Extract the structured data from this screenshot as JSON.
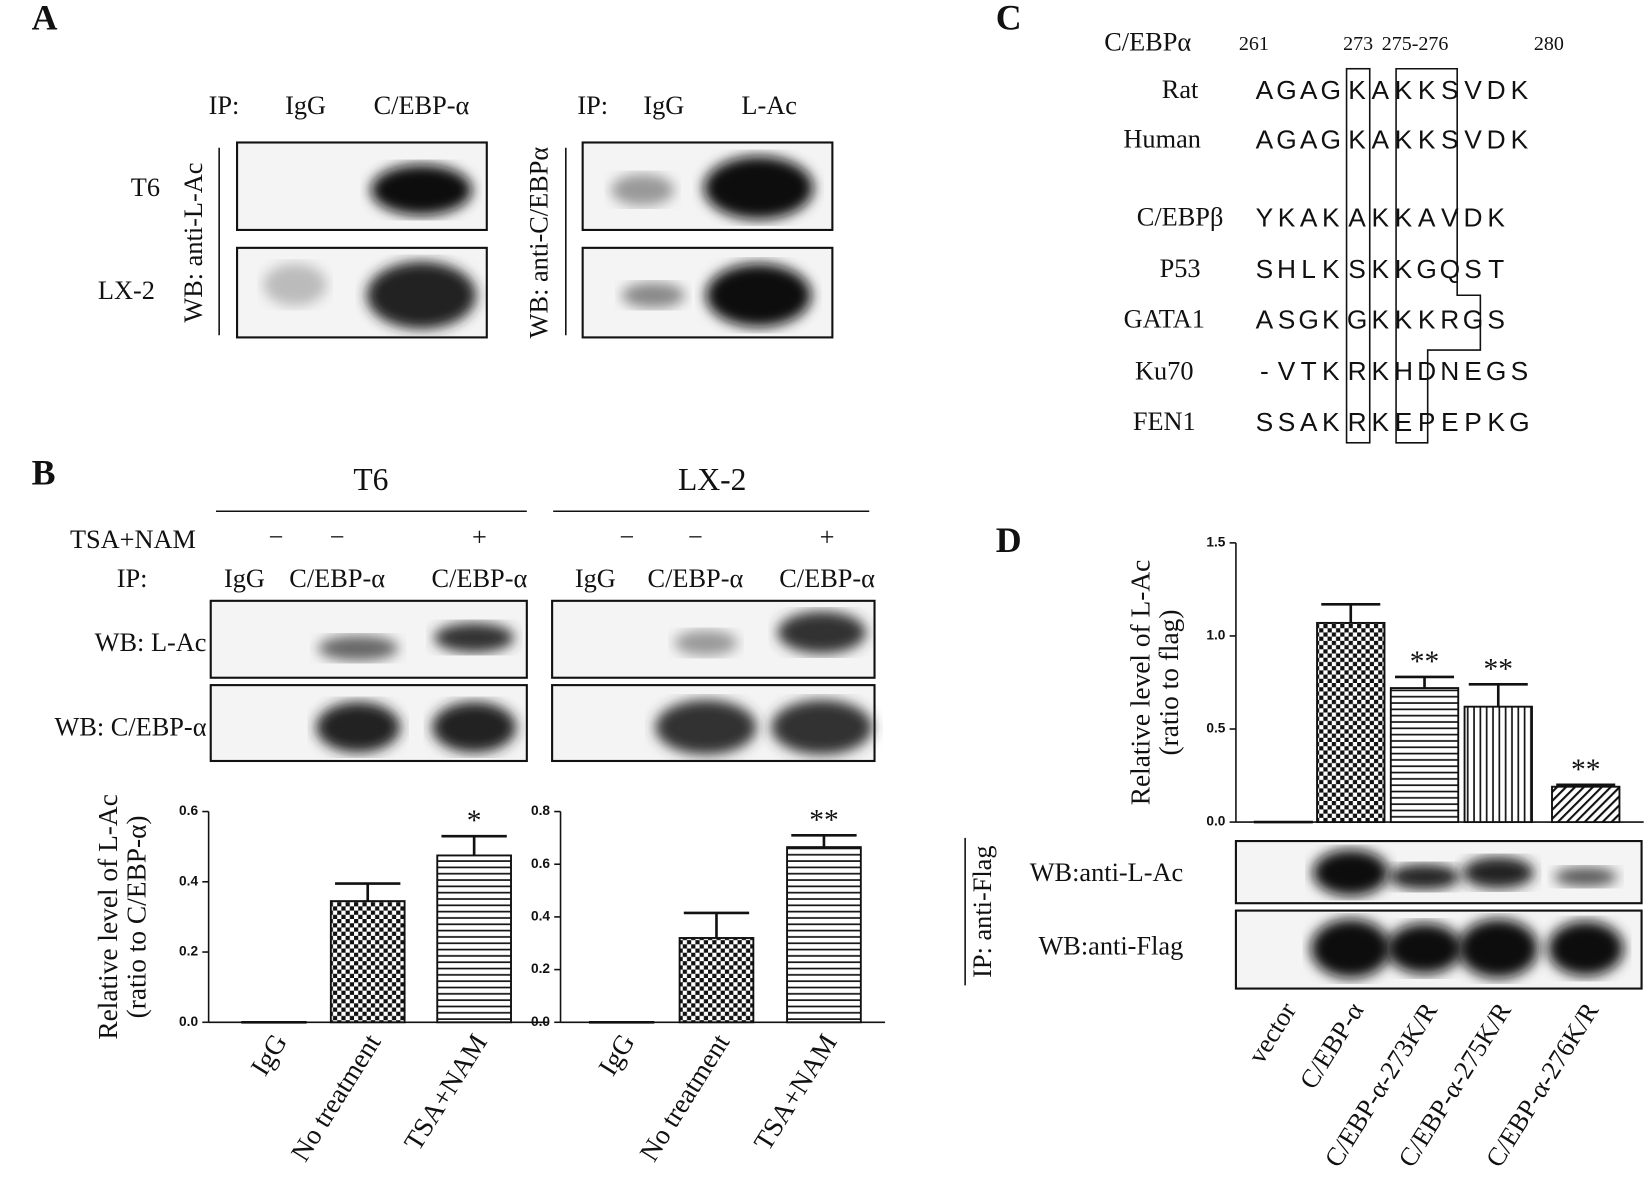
{
  "panels": {
    "A": {
      "label": "A",
      "left": {
        "ip": "IP:",
        "lanes": [
          "IgG",
          "C/EBP-α"
        ],
        "wb": "WB: anti-L-Ac"
      },
      "right": {
        "ip": "IP:",
        "lanes": [
          "IgG",
          "L-Ac"
        ],
        "wb": "WB: anti-C/EBPα"
      },
      "rows": [
        "T6",
        "LX-2"
      ]
    },
    "B": {
      "label": "B",
      "groups": [
        "T6",
        "LX-2"
      ],
      "treatment": "TSA+NAM",
      "signs": [
        "−",
        "−",
        "+",
        "−",
        "−",
        "+"
      ],
      "ip": "IP:",
      "lanes": [
        "IgG",
        "C/EBP-α",
        "C/EBP-α",
        "IgG",
        "C/EBP-α",
        "C/EBP-α"
      ],
      "wb": [
        "WB: L-Ac",
        "WB: C/EBP-α"
      ]
    },
    "C": {
      "label": "C",
      "ref": "C/EBPα",
      "positions": [
        "261",
        "273",
        "275-276",
        "280"
      ],
      "rows": [
        {
          "name": "Rat",
          "seq": [
            "A",
            "G",
            "A",
            "G",
            "K",
            "A",
            "K",
            "K",
            "S",
            "V",
            "D",
            "K"
          ]
        },
        {
          "name": "Human",
          "seq": [
            "A",
            "G",
            "A",
            "G",
            "K",
            "A",
            "K",
            "K",
            "S",
            "V",
            "D",
            "K"
          ]
        },
        {
          "name": "C/EBPβ",
          "seq": [
            "Y",
            "K",
            "A",
            "K",
            "A",
            "K",
            "K",
            "A",
            "V",
            "D",
            "K"
          ],
          "gray": [
            5,
            6
          ]
        },
        {
          "name": "P53",
          "seq": [
            "S",
            "H",
            "L",
            "K",
            "S",
            "K",
            "K",
            "G",
            "Q",
            "S",
            "T"
          ],
          "gray": [
            6
          ]
        },
        {
          "name": "GATA1",
          "seq": [
            "A",
            "S",
            "G",
            "K",
            "G",
            "K",
            "K",
            "K",
            "R",
            "G",
            "S"
          ],
          "gray": [
            3,
            5
          ]
        },
        {
          "name": "Ku70",
          "seq": [
            "-",
            "V",
            "T",
            "K",
            "R",
            "K",
            "H",
            "D",
            "N",
            "E",
            "G",
            "S"
          ],
          "gray": [
            3,
            5
          ]
        },
        {
          "name": "FEN1",
          "seq": [
            "S",
            "S",
            "A",
            "K",
            "R",
            "K",
            "E",
            "P",
            "E",
            "P",
            "K",
            "G"
          ],
          "gray": [
            5
          ]
        }
      ]
    },
    "D": {
      "label": "D",
      "ip": "IP: anti-Flag",
      "wb": [
        "WB:anti-L-Ac",
        "WB:anti-Flag"
      ]
    }
  },
  "chart_data": [
    {
      "type": "bar",
      "y_label": [
        "Relative level of L-Ac",
        "(ratio to C/EBP-α)"
      ],
      "categories": [
        "IgG",
        "No treatment",
        "TSA+NAM"
      ],
      "values": [
        0,
        0.345,
        0.475
      ],
      "errors": [
        0,
        0.05,
        0.055
      ],
      "significance": [
        null,
        null,
        "*"
      ],
      "patterns": [
        "checker",
        "checker",
        "hlines"
      ],
      "ylim": [
        0,
        0.6
      ],
      "yticks": [
        {
          "value": 0,
          "label": "0.0"
        },
        0.2,
        0.4,
        0.6
      ]
    },
    {
      "type": "bar",
      "categories": [
        "IgG",
        "No treatment",
        "TSA+NAM"
      ],
      "values": [
        0,
        0.32,
        0.665
      ],
      "errors": [
        0,
        0.095,
        0.045
      ],
      "significance": [
        null,
        null,
        "**"
      ],
      "patterns": [
        "checker",
        "checker",
        "hlines"
      ],
      "ylim": [
        0,
        0.8
      ],
      "yticks": [
        {
          "value": 0,
          "label": "0.0"
        },
        0.2,
        0.4,
        0.6,
        0.8
      ]
    },
    {
      "type": "bar",
      "y_label": [
        "Relative level of L-Ac",
        "(ratio to flag)"
      ],
      "categories": [
        "vector",
        "C/EBP-α",
        "C/EBP-α-273K/R",
        "C/EBP-α-275K/R",
        "C/EBP-α-276K/R"
      ],
      "values": [
        0,
        1.07,
        0.72,
        0.62,
        0.19
      ],
      "errors": [
        0,
        0.1,
        0.06,
        0.12,
        0.01
      ],
      "significance": [
        null,
        null,
        "**",
        "**",
        "**"
      ],
      "patterns": [
        "checker",
        "checker",
        "hlines",
        "vlines",
        "diag"
      ],
      "ylim": [
        0,
        1.5
      ],
      "yticks": [
        {
          "value": 0,
          "label": "0.0"
        },
        0.5,
        {
          "value": 1,
          "label": "1.0"
        },
        1.5
      ]
    }
  ]
}
